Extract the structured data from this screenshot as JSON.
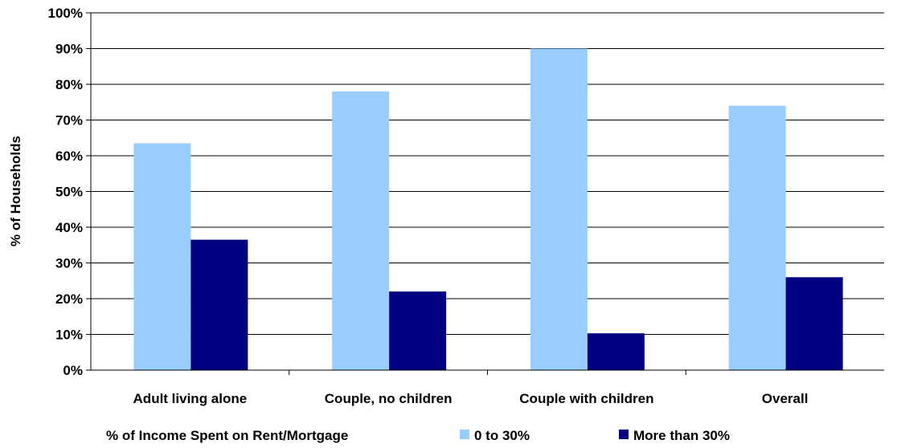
{
  "chart_data": {
    "type": "bar",
    "title": "",
    "xlabel": "",
    "ylabel": "% of Households",
    "ylim": [
      0,
      100
    ],
    "yticks": [
      "0%",
      "10%",
      "20%",
      "30%",
      "40%",
      "50%",
      "60%",
      "70%",
      "80%",
      "90%",
      "100%"
    ],
    "categories": [
      "Adult living alone",
      "Couple, no children",
      "Couple with children",
      "Overall"
    ],
    "legend_title": "% of Income Spent on Rent/Mortgage",
    "legend_position": "bottom",
    "grid": true,
    "series": [
      {
        "name": "0 to 30%",
        "color": "#99ccff",
        "values": [
          63.5,
          78,
          90,
          74
        ]
      },
      {
        "name": "More than 30%",
        "color": "#000080",
        "values": [
          36.5,
          22,
          10.3,
          26
        ]
      }
    ]
  }
}
